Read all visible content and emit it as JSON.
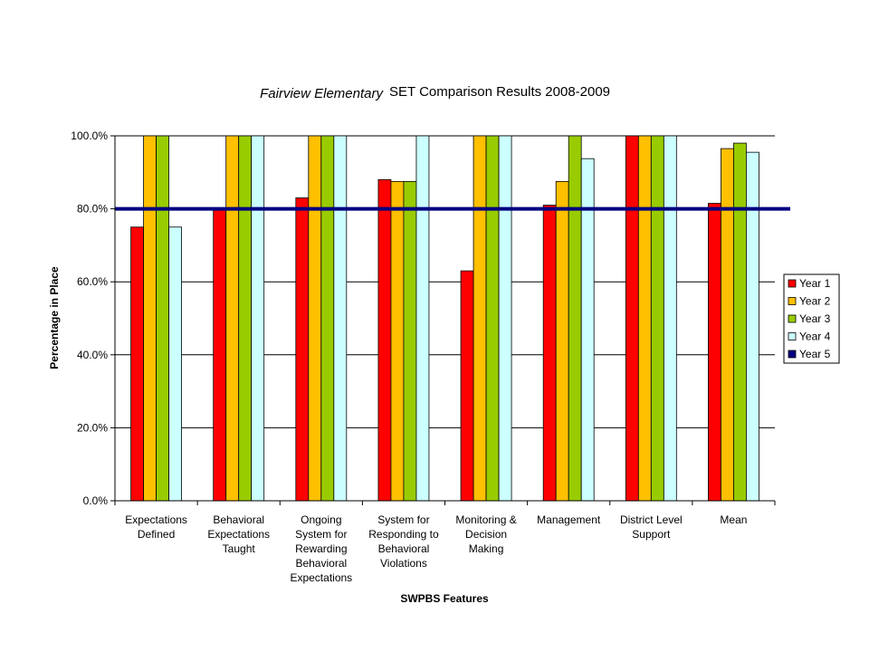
{
  "chart_data": {
    "type": "bar",
    "title_italic": "Fairview Elementary",
    "title": "SET Comparison Results 2008-2009",
    "xlabel": "SWPBS Features",
    "ylabel": "Percentage in Place",
    "ylim": [
      0,
      100
    ],
    "yticks": [
      "0.0%",
      "20.0%",
      "40.0%",
      "60.0%",
      "80.0%",
      "100.0%"
    ],
    "grid": true,
    "legend_position": "right",
    "categories": [
      [
        "Expectations",
        "Defined"
      ],
      [
        "Behavioral",
        "Expectations",
        "Taught"
      ],
      [
        "Ongoing",
        "System for",
        "Rewarding",
        "Behavioral",
        "Expectations"
      ],
      [
        "System for",
        "Responding to",
        "Behavioral",
        "Violations"
      ],
      [
        "Monitoring &",
        "Decision",
        "Making"
      ],
      [
        "Management"
      ],
      [
        "District Level",
        "Support"
      ],
      [
        "Mean"
      ]
    ],
    "series": [
      {
        "name": "Year 1",
        "color": "#ff0000",
        "values": [
          75,
          80,
          83,
          88,
          63,
          81,
          100,
          81.5
        ]
      },
      {
        "name": "Year 2",
        "color": "#ffc000",
        "values": [
          100,
          100,
          100,
          87.5,
          100,
          87.5,
          100,
          96.5
        ]
      },
      {
        "name": "Year 3",
        "color": "#99cc00",
        "values": [
          100,
          100,
          100,
          87.5,
          100,
          100,
          100,
          98
        ]
      },
      {
        "name": "Year 4",
        "color": "#ccffff",
        "values": [
          75,
          100,
          100,
          100,
          100,
          93.75,
          100,
          95.5
        ]
      }
    ],
    "reference_line": {
      "name": "Year 5",
      "color": "#000080",
      "value": 80
    }
  }
}
